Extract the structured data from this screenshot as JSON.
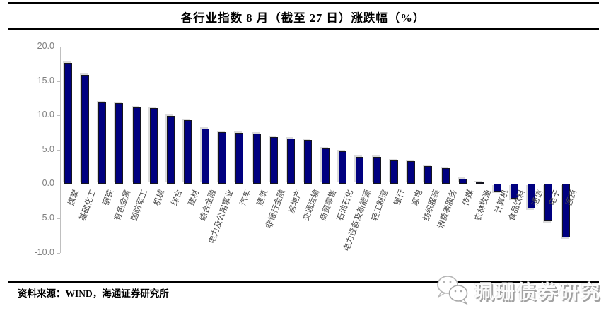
{
  "header": {
    "title": "各行业指数 8 月（截至 27 日）涨跌幅（%）"
  },
  "chart_data": {
    "type": "bar",
    "title": "各行业指数 8 月（截至 27 日）涨跌幅（%）",
    "xlabel": "",
    "ylabel": "",
    "ylim": [
      -10.0,
      20.0
    ],
    "yticks": [
      20,
      15,
      10,
      5,
      0,
      -5,
      -10
    ],
    "ytick_labels": [
      "20.0",
      "15.0",
      "10.0",
      "5.0",
      "0.0",
      "-5.0",
      "-10.0"
    ],
    "grid": false,
    "legend": "none",
    "bar_color": "#000080",
    "bar_border_color": "#15151f",
    "axis_color": "#bfbfbf",
    "categories": [
      "煤炭",
      "基础化工",
      "钢铁",
      "有色金属",
      "国防军工",
      "机械",
      "综合",
      "建材",
      "综合金融",
      "电力及公用事业",
      "汽车",
      "建筑",
      "非银行金融",
      "房地产",
      "交通运输",
      "商贸零售",
      "石油石化",
      "电力设备及新能源",
      "轻工制造",
      "银行",
      "家电",
      "纺织服装",
      "消费者服务",
      "传媒",
      "农林牧渔",
      "计算机",
      "食品饮料",
      "通信",
      "电子",
      "医药"
    ],
    "values": [
      17.6,
      15.9,
      11.9,
      11.8,
      11.2,
      11.1,
      9.9,
      9.3,
      8.1,
      7.6,
      7.5,
      7.3,
      6.8,
      6.6,
      6.4,
      5.2,
      4.8,
      3.9,
      3.9,
      3.4,
      3.3,
      2.6,
      2.3,
      0.8,
      0.2,
      -1.1,
      -2.1,
      -3.6,
      -5.4,
      -7.8
    ]
  },
  "footer": {
    "source": "资料来源：WIND，海通证券研究所",
    "brand": "珮珊债券研究",
    "brand_icon": "wechat-icon"
  }
}
